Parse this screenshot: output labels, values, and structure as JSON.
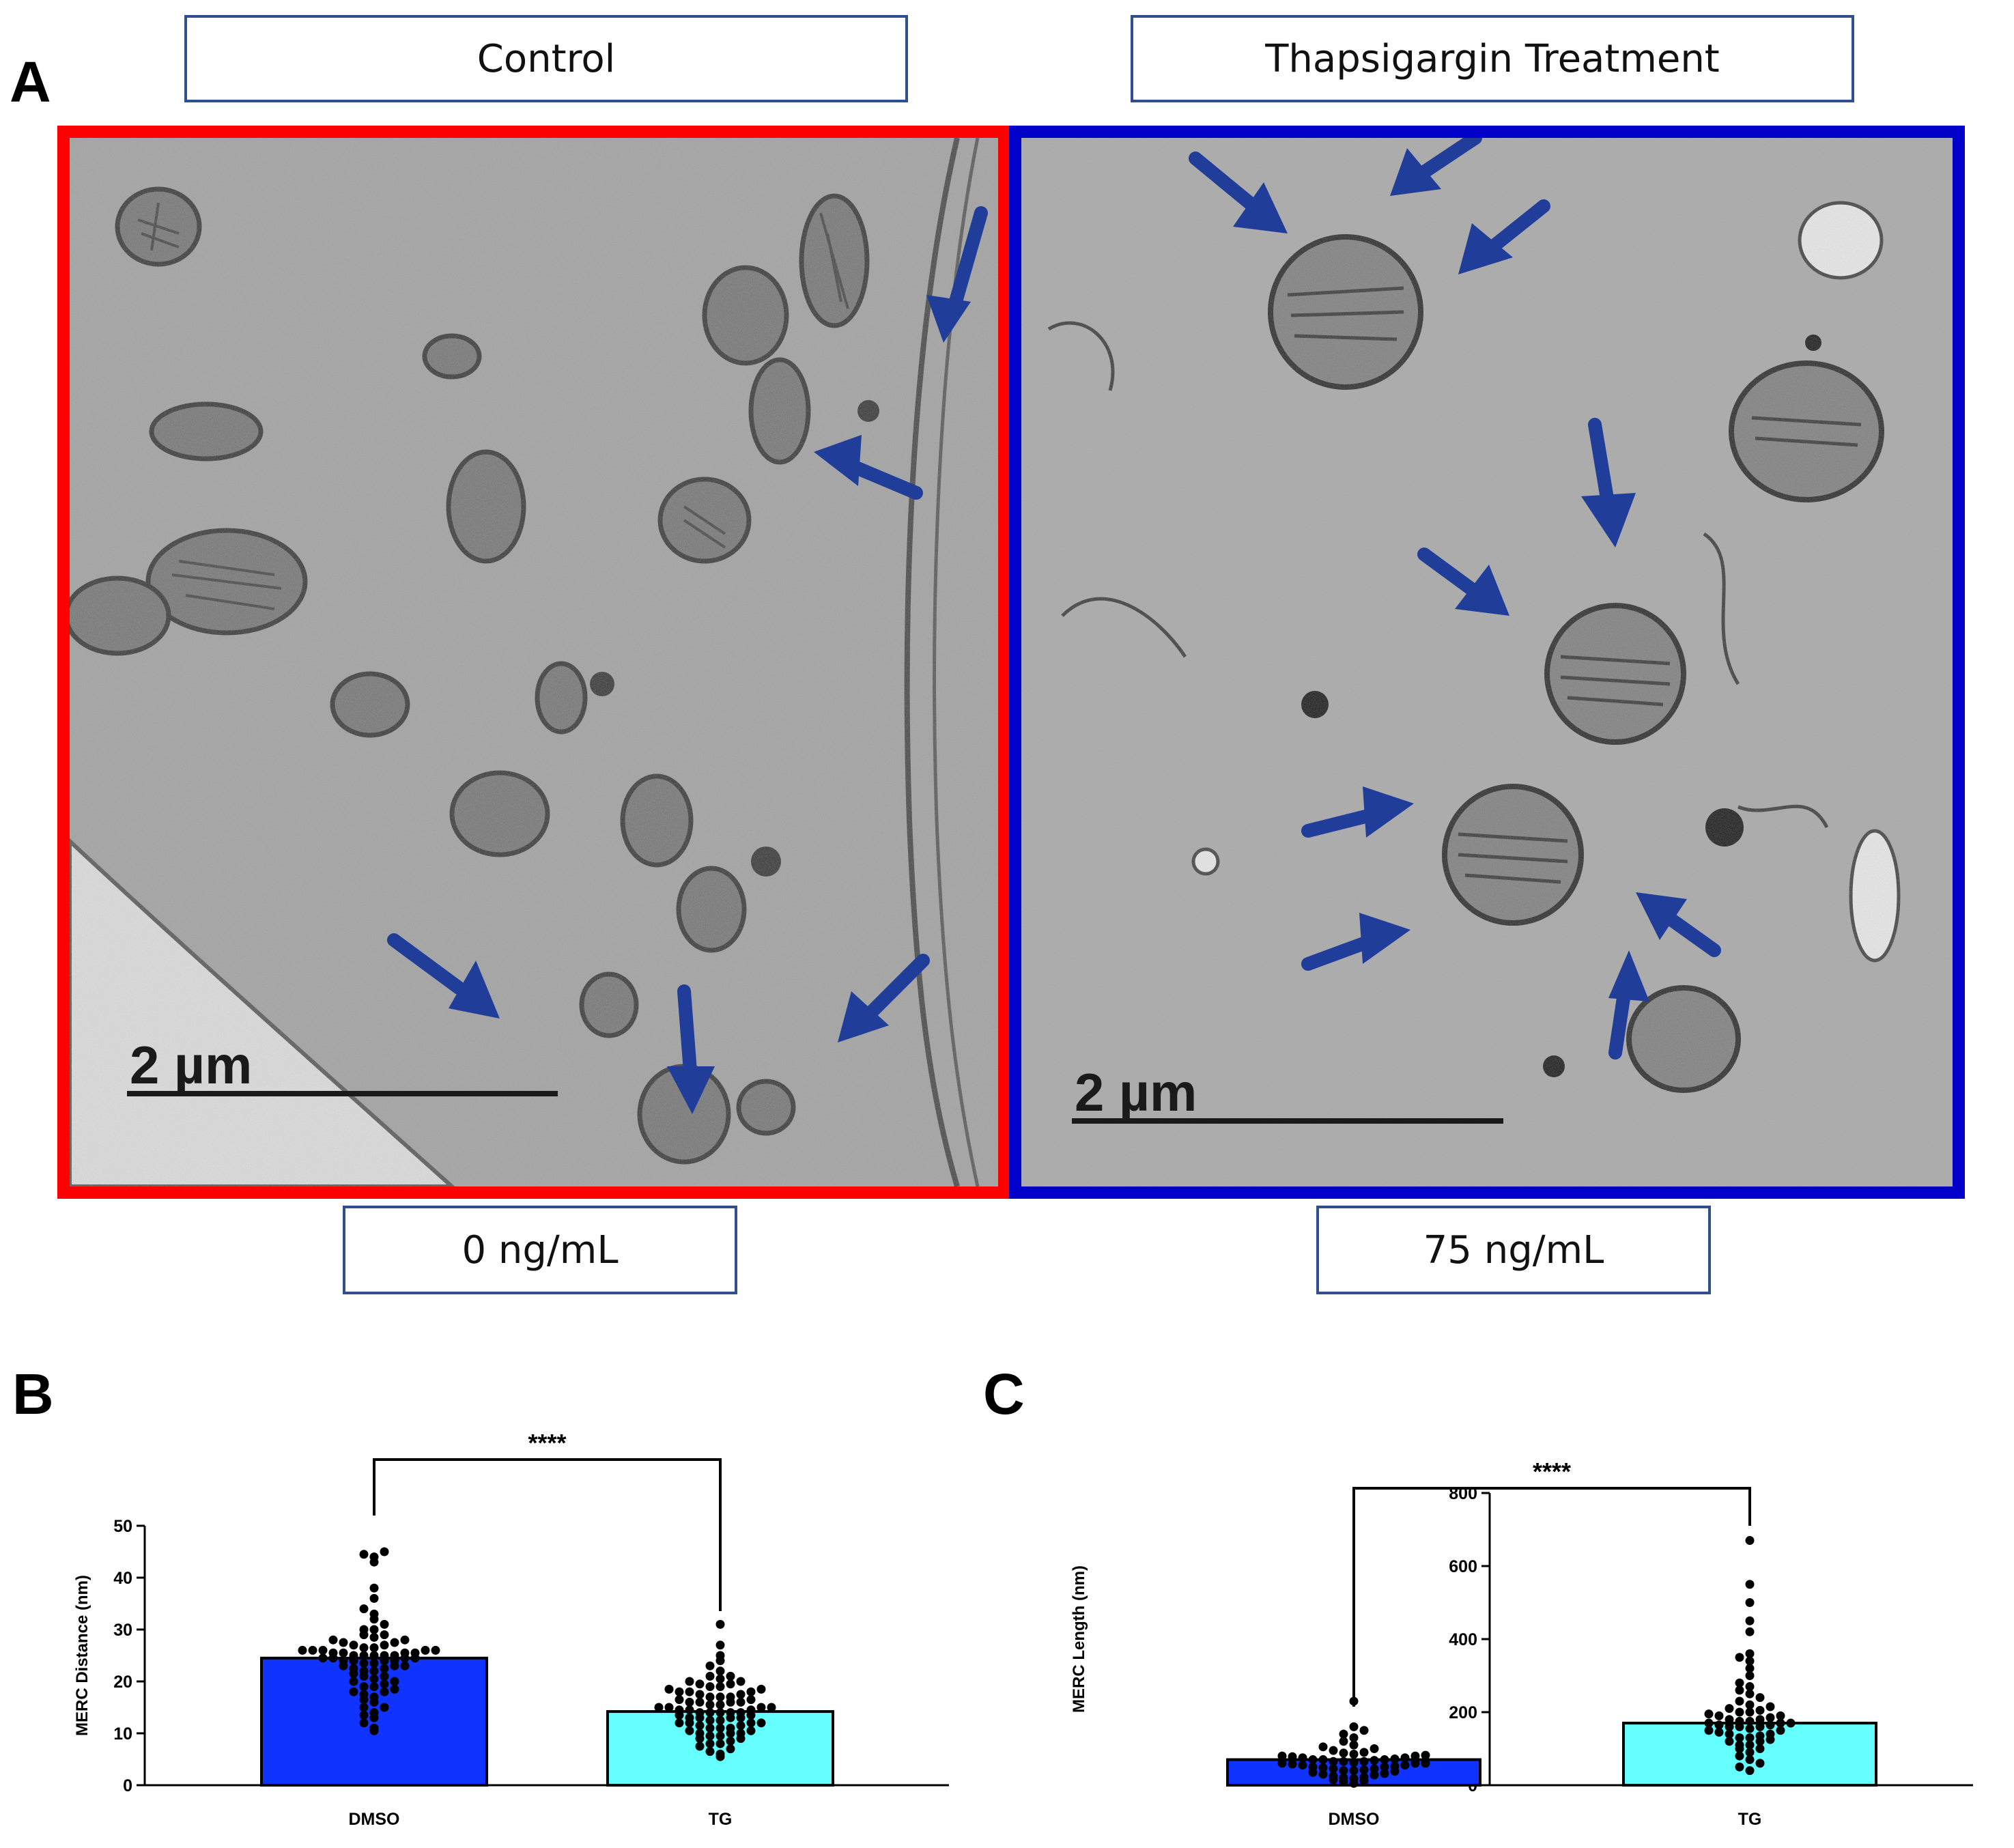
{
  "panel_a": {
    "letter": "A",
    "control_label": "Control",
    "treatment_label": "Thapsigargin Treatment",
    "control_dose": "0 ng/mL",
    "treatment_dose": "75 ng/mL",
    "scale_bar_left": "2 µm",
    "scale_bar_right": "2 µm",
    "colors": {
      "control_frame": "#ff0000",
      "treatment_frame": "#0000c8",
      "arrow": "#1f3d99"
    }
  },
  "chart_data": [
    {
      "panel": "B",
      "type": "bar",
      "categories": [
        "DMSO",
        "TG"
      ],
      "values": [
        24.5,
        14.2
      ],
      "ylabel": "MERC Distance (nm)",
      "ylim": [
        0,
        50
      ],
      "yticks": [
        0,
        10,
        20,
        30,
        40,
        50
      ],
      "significance": "****",
      "bar_colors": [
        "#1133ff",
        "#66ffff"
      ],
      "points": [
        [
          10.5,
          11,
          12,
          13,
          13.5,
          14,
          15,
          15,
          16,
          16.5,
          17,
          17.5,
          18,
          18,
          18.5,
          19,
          19,
          19.5,
          20,
          20,
          20.5,
          21,
          21,
          21.5,
          22,
          22,
          22.5,
          22.5,
          23,
          23,
          23,
          23.5,
          23.5,
          24,
          24,
          24,
          24,
          24.5,
          24.5,
          24.5,
          24.5,
          25,
          25,
          25,
          25,
          25,
          25.5,
          25.5,
          25.5,
          25.5,
          26,
          26,
          26,
          26,
          26,
          26.5,
          26.5,
          27,
          27,
          27.5,
          27.5,
          28,
          28,
          28.5,
          29,
          29,
          30,
          30,
          31,
          32,
          33,
          34,
          36,
          38,
          43,
          44,
          44.5,
          45
        ],
        [
          5.5,
          6,
          6.5,
          7,
          7.5,
          8,
          8,
          8.5,
          9,
          9,
          9.5,
          9.5,
          10,
          10,
          10,
          10.5,
          10.5,
          11,
          11,
          11,
          11.5,
          11.5,
          12,
          12,
          12,
          12,
          12.5,
          12.5,
          13,
          13,
          13,
          13,
          13.5,
          13.5,
          14,
          14,
          14,
          14,
          14,
          14.5,
          14.5,
          14.5,
          15,
          15,
          15,
          15,
          15.5,
          15.5,
          16,
          16,
          16,
          16,
          16.5,
          16.5,
          17,
          17,
          17,
          17.5,
          17.5,
          18,
          18,
          18,
          18.5,
          18.5,
          19,
          19,
          19.5,
          19.5,
          20,
          20,
          20.5,
          21,
          21,
          22,
          23,
          24,
          25,
          27,
          31
        ]
      ]
    },
    {
      "panel": "C",
      "type": "bar",
      "categories": [
        "DMSO",
        "TG"
      ],
      "values": [
        70,
        170
      ],
      "ylabel": "MERC Length (nm)",
      "ylim": [
        0,
        800
      ],
      "yticks": [
        0,
        200,
        400,
        600,
        800
      ],
      "significance": "****",
      "bar_colors": [
        "#1133ff",
        "#66ffff"
      ],
      "points": [
        [
          5,
          10,
          12,
          15,
          18,
          20,
          22,
          25,
          28,
          30,
          32,
          35,
          38,
          40,
          40,
          42,
          45,
          45,
          48,
          50,
          50,
          52,
          55,
          55,
          58,
          60,
          60,
          60,
          62,
          65,
          65,
          65,
          68,
          70,
          70,
          70,
          72,
          75,
          75,
          78,
          80,
          80,
          82,
          85,
          88,
          90,
          95,
          100,
          105,
          110,
          120,
          130,
          140,
          150,
          160,
          230
        ],
        [
          40,
          50,
          60,
          70,
          80,
          90,
          100,
          100,
          110,
          110,
          120,
          120,
          125,
          130,
          130,
          135,
          140,
          140,
          145,
          150,
          150,
          155,
          160,
          160,
          160,
          165,
          165,
          170,
          170,
          170,
          175,
          175,
          180,
          180,
          185,
          190,
          190,
          195,
          200,
          200,
          205,
          210,
          215,
          220,
          230,
          240,
          250,
          260,
          270,
          280,
          300,
          320,
          340,
          350,
          360,
          420,
          450,
          500,
          550,
          670
        ]
      ]
    }
  ]
}
